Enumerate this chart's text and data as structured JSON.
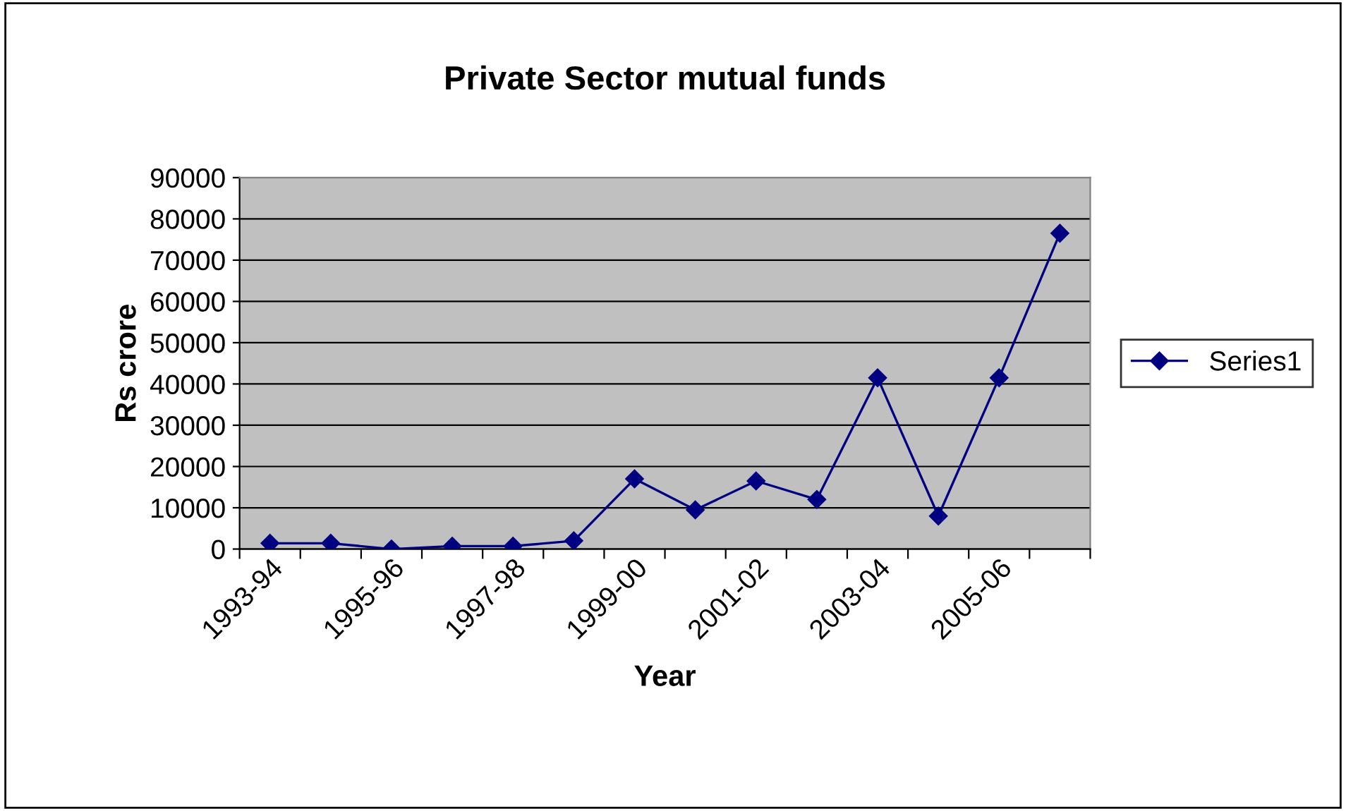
{
  "chart_data": {
    "type": "line",
    "title": "Private Sector mutual funds",
    "xlabel": "Year",
    "ylabel": "Rs crore",
    "categories": [
      "1993-94",
      null,
      "1995-96",
      null,
      "1997-98",
      null,
      "1999-00",
      null,
      "2001-02",
      null,
      "2003-04",
      null,
      "2005-06",
      null
    ],
    "series": [
      {
        "name": "Series1",
        "color": "#000080",
        "values": [
          1400,
          1400,
          0,
          700,
          700,
          2000,
          17000,
          9500,
          16500,
          12000,
          41500,
          8000,
          41500,
          76500
        ]
      }
    ],
    "ylim": [
      0,
      90000
    ],
    "yticks": [
      0,
      10000,
      20000,
      30000,
      40000,
      50000,
      60000,
      70000,
      80000,
      90000
    ],
    "grid": "y",
    "legend": "right",
    "marker": "diamond",
    "line_style": "solid"
  }
}
